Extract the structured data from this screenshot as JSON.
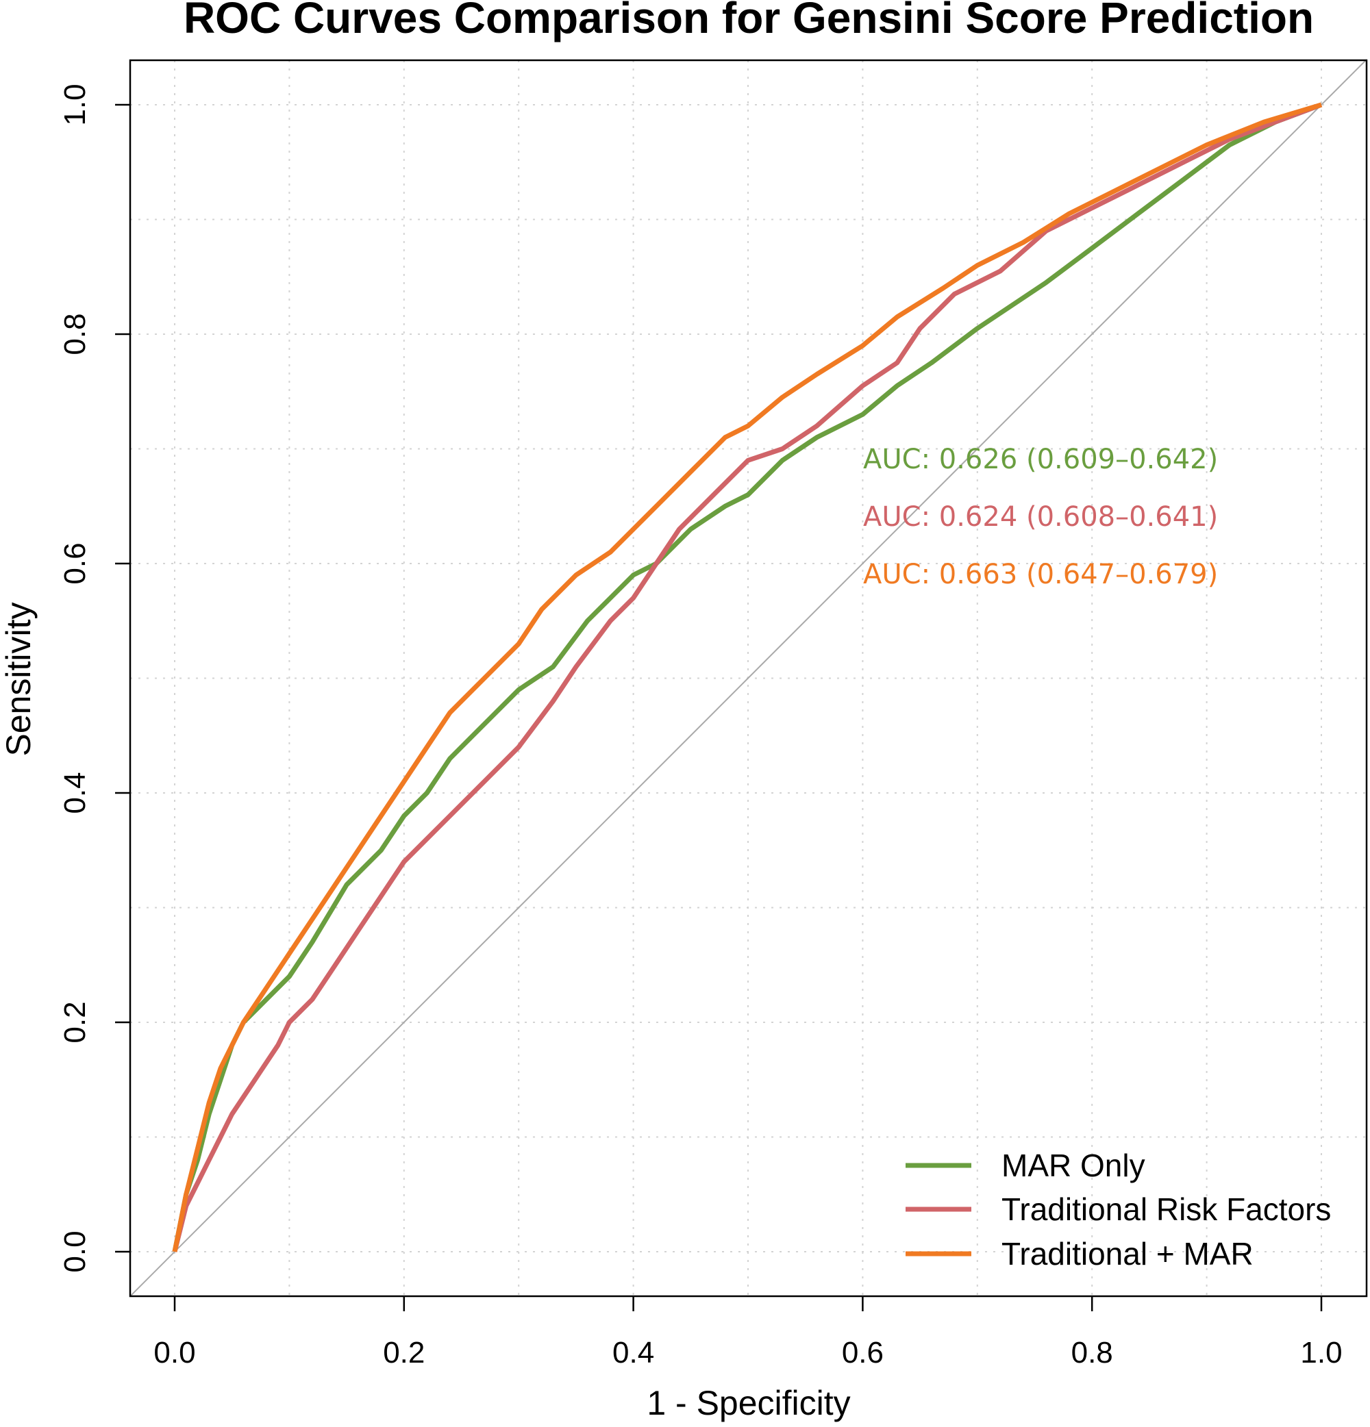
{
  "chart_data": {
    "type": "line",
    "title": "ROC Curves Comparison for Gensini Score Prediction",
    "xlabel": "1 - Specificity",
    "ylabel": "Sensitivity",
    "xlim": [
      0,
      1
    ],
    "ylim": [
      0,
      1
    ],
    "x_ticks": [
      "0.0",
      "0.2",
      "0.4",
      "0.6",
      "0.8",
      "1.0"
    ],
    "y_ticks": [
      "0.0",
      "0.2",
      "0.4",
      "0.6",
      "0.8",
      "1.0"
    ],
    "grid": true,
    "reference_line": "diagonal",
    "legend_position": "bottom-right",
    "series": [
      {
        "name": "MAR Only",
        "color": "#6a9e3f",
        "auc_label": "AUC: 0.626 (0.609–0.642)",
        "points": [
          [
            0,
            0
          ],
          [
            0.01,
            0.05
          ],
          [
            0.02,
            0.08
          ],
          [
            0.03,
            0.12
          ],
          [
            0.04,
            0.15
          ],
          [
            0.05,
            0.18
          ],
          [
            0.06,
            0.2
          ],
          [
            0.08,
            0.22
          ],
          [
            0.1,
            0.24
          ],
          [
            0.12,
            0.27
          ],
          [
            0.15,
            0.32
          ],
          [
            0.18,
            0.35
          ],
          [
            0.2,
            0.38
          ],
          [
            0.22,
            0.4
          ],
          [
            0.24,
            0.43
          ],
          [
            0.26,
            0.45
          ],
          [
            0.28,
            0.47
          ],
          [
            0.3,
            0.49
          ],
          [
            0.33,
            0.51
          ],
          [
            0.36,
            0.55
          ],
          [
            0.38,
            0.57
          ],
          [
            0.4,
            0.59
          ],
          [
            0.42,
            0.6
          ],
          [
            0.45,
            0.63
          ],
          [
            0.48,
            0.65
          ],
          [
            0.5,
            0.66
          ],
          [
            0.53,
            0.69
          ],
          [
            0.56,
            0.71
          ],
          [
            0.6,
            0.73
          ],
          [
            0.63,
            0.755
          ],
          [
            0.66,
            0.775
          ],
          [
            0.7,
            0.805
          ],
          [
            0.73,
            0.825
          ],
          [
            0.76,
            0.845
          ],
          [
            0.8,
            0.875
          ],
          [
            0.84,
            0.905
          ],
          [
            0.88,
            0.935
          ],
          [
            0.92,
            0.965
          ],
          [
            0.96,
            0.985
          ],
          [
            1.0,
            1.0
          ]
        ]
      },
      {
        "name": "Traditional Risk Factors",
        "color": "#d06468",
        "auc_label": "AUC: 0.624 (0.608–0.641)",
        "points": [
          [
            0,
            0
          ],
          [
            0.01,
            0.04
          ],
          [
            0.02,
            0.06
          ],
          [
            0.03,
            0.08
          ],
          [
            0.04,
            0.1
          ],
          [
            0.05,
            0.12
          ],
          [
            0.07,
            0.15
          ],
          [
            0.09,
            0.18
          ],
          [
            0.1,
            0.2
          ],
          [
            0.12,
            0.22
          ],
          [
            0.14,
            0.25
          ],
          [
            0.16,
            0.28
          ],
          [
            0.18,
            0.31
          ],
          [
            0.2,
            0.34
          ],
          [
            0.23,
            0.37
          ],
          [
            0.25,
            0.39
          ],
          [
            0.27,
            0.41
          ],
          [
            0.3,
            0.44
          ],
          [
            0.33,
            0.48
          ],
          [
            0.35,
            0.51
          ],
          [
            0.38,
            0.55
          ],
          [
            0.4,
            0.57
          ],
          [
            0.42,
            0.6
          ],
          [
            0.44,
            0.63
          ],
          [
            0.47,
            0.66
          ],
          [
            0.5,
            0.69
          ],
          [
            0.53,
            0.7
          ],
          [
            0.56,
            0.72
          ],
          [
            0.6,
            0.755
          ],
          [
            0.63,
            0.775
          ],
          [
            0.65,
            0.805
          ],
          [
            0.68,
            0.835
          ],
          [
            0.72,
            0.855
          ],
          [
            0.76,
            0.89
          ],
          [
            0.8,
            0.91
          ],
          [
            0.84,
            0.93
          ],
          [
            0.88,
            0.95
          ],
          [
            0.92,
            0.97
          ],
          [
            0.96,
            0.985
          ],
          [
            1.0,
            1.0
          ]
        ]
      },
      {
        "name": "Traditional + MAR",
        "color": "#f07a22",
        "auc_label": "AUC: 0.663 (0.647–0.679)",
        "points": [
          [
            0,
            0
          ],
          [
            0.01,
            0.05
          ],
          [
            0.02,
            0.09
          ],
          [
            0.03,
            0.13
          ],
          [
            0.04,
            0.16
          ],
          [
            0.05,
            0.18
          ],
          [
            0.06,
            0.2
          ],
          [
            0.08,
            0.23
          ],
          [
            0.1,
            0.26
          ],
          [
            0.12,
            0.29
          ],
          [
            0.14,
            0.32
          ],
          [
            0.16,
            0.35
          ],
          [
            0.18,
            0.38
          ],
          [
            0.2,
            0.41
          ],
          [
            0.22,
            0.44
          ],
          [
            0.24,
            0.47
          ],
          [
            0.26,
            0.49
          ],
          [
            0.28,
            0.51
          ],
          [
            0.3,
            0.53
          ],
          [
            0.32,
            0.56
          ],
          [
            0.35,
            0.59
          ],
          [
            0.38,
            0.61
          ],
          [
            0.4,
            0.63
          ],
          [
            0.42,
            0.65
          ],
          [
            0.45,
            0.68
          ],
          [
            0.48,
            0.71
          ],
          [
            0.5,
            0.72
          ],
          [
            0.53,
            0.745
          ],
          [
            0.56,
            0.765
          ],
          [
            0.6,
            0.79
          ],
          [
            0.63,
            0.815
          ],
          [
            0.67,
            0.84
          ],
          [
            0.7,
            0.86
          ],
          [
            0.74,
            0.88
          ],
          [
            0.78,
            0.905
          ],
          [
            0.82,
            0.925
          ],
          [
            0.86,
            0.945
          ],
          [
            0.9,
            0.965
          ],
          [
            0.95,
            0.985
          ],
          [
            1.0,
            1.0
          ]
        ]
      }
    ]
  }
}
